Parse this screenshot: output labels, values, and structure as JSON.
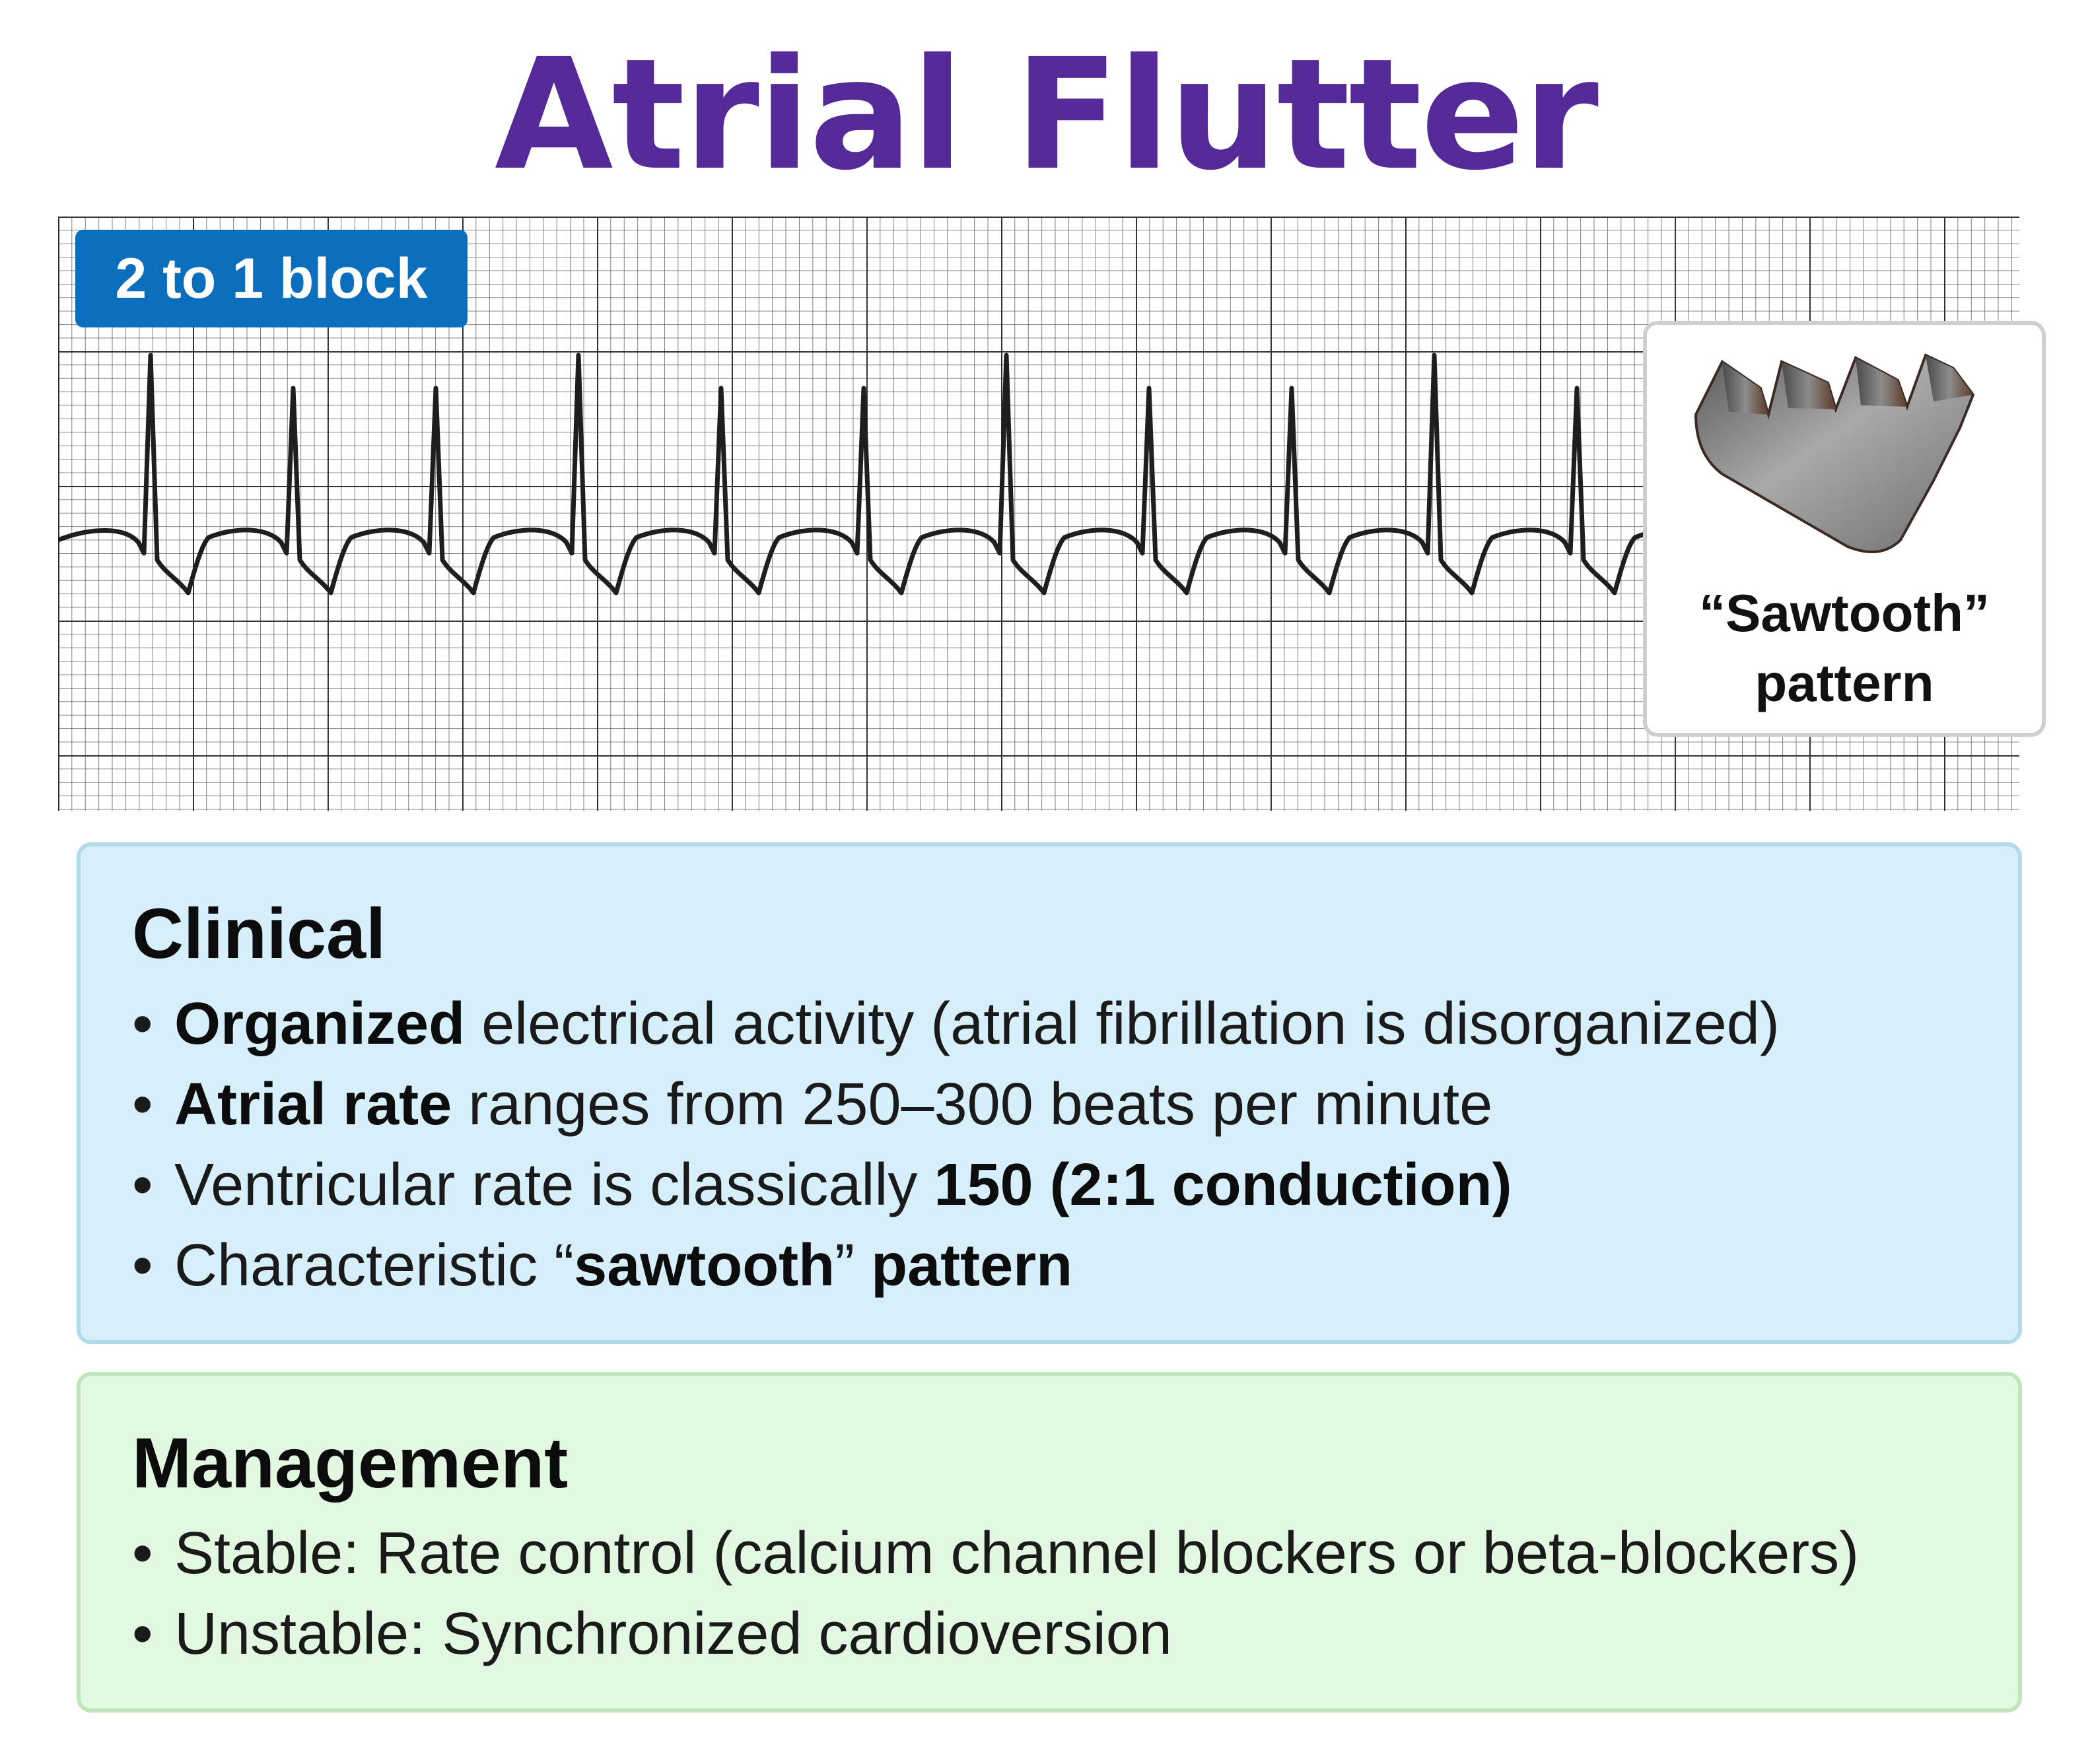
{
  "title": "Atrial Flutter",
  "colors": {
    "title": "#552a98",
    "badge": "#0a6ebd",
    "clinical_bg": "#d7effb",
    "management_bg": "#e2f8e0",
    "ecg_trace": "#1e1e1e",
    "ecg_grid": "#2a2a2a"
  },
  "ecg": {
    "badge_label": "2 to 1 block",
    "inset_caption": [
      "“Sawtooth”",
      "pattern"
    ],
    "inset_icon": "sawblade-icon"
  },
  "clinical": {
    "heading": "Clinical",
    "bullet_symbol": "•",
    "items": [
      {
        "bold": "Organized",
        "rest": " electrical activity (atrial fibrillation is disorganized)"
      },
      {
        "bold": "Atrial rate",
        "rest": " ranges from 250–300 beats per minute"
      },
      {
        "plain": "Ventricular rate is classically ",
        "bold": "150 (2:1 conduction)"
      },
      {
        "plain": "Characteristic “",
        "bold": "sawtooth",
        "plain2": "” ",
        "bold2": "pattern"
      }
    ]
  },
  "management": {
    "heading": "Management",
    "bullet_symbol": "•",
    "items": [
      {
        "plain": "Stable: Rate control (calcium channel blockers or beta-blockers)"
      },
      {
        "plain": "Unstable: Synchronized cardioversion"
      }
    ]
  }
}
